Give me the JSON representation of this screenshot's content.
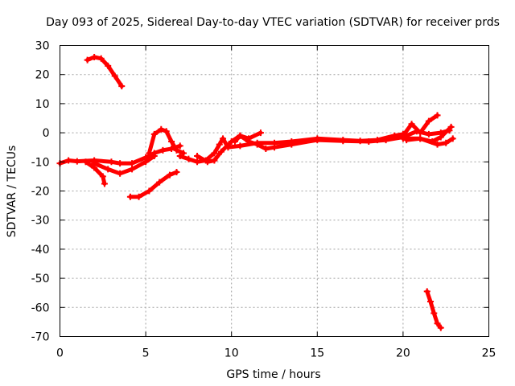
{
  "chart_data": {
    "type": "scatter",
    "title": "Day 093 of 2025, Sidereal Day-to-day VTEC variation (SDTVAR) for receiver prds",
    "xlabel": "GPS time / hours",
    "ylabel": "SDTVAR / TECUs",
    "xlim": [
      0,
      25
    ],
    "ylim": [
      -70,
      30
    ],
    "xticks": [
      0,
      5,
      10,
      15,
      20,
      25
    ],
    "xtick_labels": [
      "0",
      "5",
      "10",
      "15",
      "20",
      "25"
    ],
    "yticks": [
      30,
      20,
      10,
      0,
      -10,
      -20,
      -30,
      -40,
      -50,
      -60,
      -70
    ],
    "ytick_labels": [
      "30",
      "20",
      "10",
      "0",
      "-10",
      "-20",
      "-30",
      "-40",
      "-50",
      "-60",
      "-70"
    ],
    "grid": true,
    "marker_color": "#ff0000",
    "series": [
      {
        "name": "arc-high",
        "points": [
          [
            1.6,
            25
          ],
          [
            2.0,
            26
          ],
          [
            2.4,
            25.5
          ],
          [
            2.8,
            23
          ],
          [
            3.2,
            19.5
          ],
          [
            3.6,
            16
          ]
        ]
      },
      {
        "name": "arc-main",
        "points": [
          [
            0.0,
            -10.5
          ],
          [
            0.5,
            -9.5
          ],
          [
            1.0,
            -9.8
          ],
          [
            2.0,
            -9.5
          ],
          [
            3.0,
            -10
          ],
          [
            3.5,
            -10.5
          ],
          [
            4.2,
            -10.5
          ],
          [
            5.0,
            -8.5
          ],
          [
            5.5,
            -7
          ],
          [
            6.0,
            -6
          ],
          [
            6.5,
            -5.5
          ],
          [
            7.0,
            -4.5
          ]
        ]
      },
      {
        "name": "arc-dip-a",
        "points": [
          [
            1.5,
            -10
          ],
          [
            2.0,
            -12
          ],
          [
            2.5,
            -15
          ],
          [
            2.6,
            -17.5
          ]
        ]
      },
      {
        "name": "arc-dip-b",
        "points": [
          [
            2.0,
            -10.5
          ],
          [
            2.8,
            -12.5
          ],
          [
            3.5,
            -14
          ],
          [
            4.2,
            -12.5
          ],
          [
            5.0,
            -10
          ],
          [
            5.5,
            -8
          ]
        ]
      },
      {
        "name": "arc-low",
        "points": [
          [
            4.1,
            -22
          ],
          [
            4.6,
            -22
          ],
          [
            5.2,
            -20
          ],
          [
            5.8,
            -17
          ],
          [
            6.4,
            -14.5
          ],
          [
            6.8,
            -13.5
          ]
        ]
      },
      {
        "name": "arc-bump",
        "points": [
          [
            5.2,
            -7
          ],
          [
            5.5,
            -0.5
          ],
          [
            5.9,
            1.2
          ],
          [
            6.2,
            0.5
          ],
          [
            6.5,
            -3
          ],
          [
            6.8,
            -6
          ],
          [
            7.2,
            -7
          ]
        ]
      },
      {
        "name": "arc-mid-a",
        "points": [
          [
            7.0,
            -8
          ],
          [
            7.5,
            -9
          ],
          [
            8.0,
            -10
          ],
          [
            8.5,
            -9.5
          ],
          [
            9.0,
            -7
          ],
          [
            9.3,
            -4
          ],
          [
            9.5,
            -2
          ],
          [
            9.8,
            -5
          ],
          [
            10.5,
            -4.5
          ],
          [
            11.5,
            -3.5
          ],
          [
            12.5,
            -3.5
          ],
          [
            13.5,
            -3
          ],
          [
            15.0,
            -2
          ],
          [
            16.5,
            -2.5
          ],
          [
            17.5,
            -2.8
          ],
          [
            18.5,
            -2.5
          ],
          [
            19.5,
            -1
          ],
          [
            20.0,
            -0.5
          ]
        ]
      },
      {
        "name": "arc-mid-b",
        "points": [
          [
            8.0,
            -8
          ],
          [
            8.6,
            -10
          ],
          [
            9.0,
            -9.5
          ],
          [
            9.4,
            -6.5
          ],
          [
            10.0,
            -3
          ],
          [
            10.5,
            -1
          ],
          [
            11.0,
            -3
          ],
          [
            11.5,
            -4
          ],
          [
            12.0,
            -5.5
          ],
          [
            12.5,
            -5
          ],
          [
            13.5,
            -4
          ],
          [
            15.0,
            -2.5
          ],
          [
            16.5,
            -2.8
          ],
          [
            18.0,
            -3
          ],
          [
            19.0,
            -2.5
          ],
          [
            20.0,
            -1.5
          ]
        ]
      },
      {
        "name": "arc-mid-c",
        "points": [
          [
            10.2,
            -3
          ],
          [
            10.5,
            -1
          ],
          [
            11.0,
            -2
          ],
          [
            11.7,
            0
          ]
        ]
      },
      {
        "name": "arc-right-a",
        "points": [
          [
            20.0,
            -1
          ],
          [
            20.5,
            3
          ],
          [
            21.0,
            0
          ],
          [
            21.5,
            4
          ],
          [
            22.0,
            6
          ]
        ]
      },
      {
        "name": "arc-right-b",
        "points": [
          [
            20.0,
            -2
          ],
          [
            21.0,
            -2
          ],
          [
            21.7,
            -3
          ],
          [
            22.2,
            -1.5
          ],
          [
            22.8,
            2
          ]
        ]
      },
      {
        "name": "arc-right-c",
        "points": [
          [
            20.2,
            -2.5
          ],
          [
            21.0,
            -2
          ],
          [
            22.0,
            -4
          ],
          [
            22.5,
            -3.5
          ],
          [
            22.9,
            -2
          ]
        ]
      },
      {
        "name": "arc-right-d",
        "points": [
          [
            20.0,
            -1.5
          ],
          [
            20.8,
            0.5
          ],
          [
            21.5,
            -0.5
          ],
          [
            22.2,
            0
          ],
          [
            22.7,
            0.8
          ]
        ]
      },
      {
        "name": "arc-drop",
        "points": [
          [
            21.4,
            -54.5
          ],
          [
            21.6,
            -58
          ],
          [
            21.8,
            -62
          ],
          [
            22.0,
            -65.5
          ],
          [
            22.2,
            -67
          ]
        ]
      }
    ]
  }
}
